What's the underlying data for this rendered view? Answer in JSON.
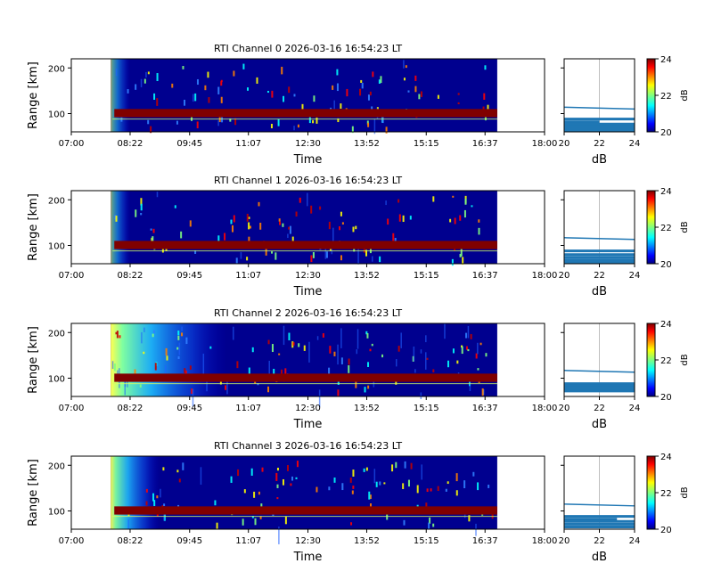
{
  "chart_data": [
    {
      "type": "heatmap",
      "title": "RTI Channel 0 2026-03-16 16:54:23 LT",
      "xlabel": "Time",
      "ylabel": "Range [km]",
      "x_ticks": [
        "07:00",
        "08:22",
        "09:45",
        "11:07",
        "12:30",
        "13:52",
        "15:15",
        "16:37",
        "18:00"
      ],
      "y_ticks": [
        100,
        200
      ],
      "xlim": [
        "07:00",
        "18:00"
      ],
      "ylim": [
        60,
        220
      ],
      "data_start": "07:55",
      "data_end": "16:54",
      "strong_echo_range_km": [
        92,
        110
      ],
      "low_range_noise": "low",
      "profile": {
        "xlabel": "dB",
        "xlim": [
          20,
          24
        ],
        "x_ticks": [
          20,
          22,
          24
        ],
        "lines": [
          {
            "range_km": 114,
            "db_start": 20,
            "db_end": 24
          },
          {
            "range_km": 88,
            "db_start": 20,
            "db_end": 24
          },
          {
            "range_km": 82,
            "db_start": 20,
            "db_end": 22
          },
          {
            "range_km": 77,
            "db_start": 20,
            "db_end": 24
          },
          {
            "range_km": 72,
            "db_start": 20,
            "db_end": 24
          },
          {
            "range_km": 68,
            "db_start": 20,
            "db_end": 24
          },
          {
            "range_km": 64,
            "db_start": 20,
            "db_end": 24
          }
        ]
      },
      "colorbar": {
        "label": "dB",
        "min": 20,
        "max": 24,
        "ticks": [
          20,
          22,
          24
        ]
      }
    },
    {
      "type": "heatmap",
      "title": "RTI Channel 1 2026-03-16 16:54:23 LT",
      "xlabel": "Time",
      "ylabel": "Range [km]",
      "x_ticks": [
        "07:00",
        "08:22",
        "09:45",
        "11:07",
        "12:30",
        "13:52",
        "15:15",
        "16:37",
        "18:00"
      ],
      "y_ticks": [
        100,
        200
      ],
      "xlim": [
        "07:00",
        "18:00"
      ],
      "ylim": [
        60,
        220
      ],
      "data_start": "07:55",
      "data_end": "16:54",
      "strong_echo_range_km": [
        92,
        110
      ],
      "low_range_noise": "low",
      "profile": {
        "xlabel": "dB",
        "xlim": [
          20,
          24
        ],
        "x_ticks": [
          20,
          22,
          24
        ],
        "lines": [
          {
            "range_km": 117,
            "db_start": 20,
            "db_end": 24
          },
          {
            "range_km": 88,
            "db_start": 20,
            "db_end": 24
          },
          {
            "range_km": 80,
            "db_start": 20,
            "db_end": 24
          },
          {
            "range_km": 74,
            "db_start": 20,
            "db_end": 24
          },
          {
            "range_km": 68,
            "db_start": 20,
            "db_end": 24
          },
          {
            "range_km": 63,
            "db_start": 20,
            "db_end": 24
          }
        ]
      },
      "colorbar": {
        "label": "dB",
        "min": 20,
        "max": 24,
        "ticks": [
          20,
          22,
          24
        ]
      }
    },
    {
      "type": "heatmap",
      "title": "RTI Channel 2 2026-03-16 16:54:23 LT",
      "xlabel": "Time",
      "ylabel": "Range [km]",
      "x_ticks": [
        "07:00",
        "08:22",
        "09:45",
        "11:07",
        "12:30",
        "13:52",
        "15:15",
        "16:37",
        "18:00"
      ],
      "y_ticks": [
        100,
        200
      ],
      "xlim": [
        "07:00",
        "18:00"
      ],
      "ylim": [
        60,
        220
      ],
      "data_start": "07:55",
      "data_end": "16:54",
      "strong_echo_range_km": [
        92,
        110
      ],
      "low_range_noise": "high",
      "profile": {
        "xlabel": "dB",
        "xlim": [
          20,
          24
        ],
        "x_ticks": [
          20,
          22,
          24
        ],
        "lines": [
          {
            "range_km": 117,
            "db_start": 20,
            "db_end": 24
          },
          {
            "range_km": 88,
            "db_start": 20,
            "db_end": 24
          },
          {
            "range_km": 84,
            "db_start": 20,
            "db_end": 24
          },
          {
            "range_km": 80,
            "db_start": 20,
            "db_end": 24
          },
          {
            "range_km": 76,
            "db_start": 20,
            "db_end": 24
          },
          {
            "range_km": 72,
            "db_start": 20,
            "db_end": 24
          }
        ]
      },
      "colorbar": {
        "label": "dB",
        "min": 20,
        "max": 24,
        "ticks": [
          20,
          22,
          24
        ]
      }
    },
    {
      "type": "heatmap",
      "title": "RTI Channel 3 2026-03-16 16:54:23 LT",
      "xlabel": "Time",
      "ylabel": "Range [km]",
      "x_ticks": [
        "07:00",
        "08:22",
        "09:45",
        "11:07",
        "12:30",
        "13:52",
        "15:15",
        "16:37",
        "18:00"
      ],
      "y_ticks": [
        100,
        200
      ],
      "xlim": [
        "07:00",
        "18:00"
      ],
      "ylim": [
        60,
        220
      ],
      "data_start": "07:55",
      "data_end": "16:54",
      "strong_echo_range_km": [
        92,
        110
      ],
      "low_range_noise": "medium",
      "profile": {
        "xlabel": "dB",
        "xlim": [
          20,
          24
        ],
        "x_ticks": [
          20,
          22,
          24
        ],
        "lines": [
          {
            "range_km": 115,
            "db_start": 20,
            "db_end": 24
          },
          {
            "range_km": 88,
            "db_start": 20,
            "db_end": 24
          },
          {
            "range_km": 82,
            "db_start": 20,
            "db_end": 23
          },
          {
            "range_km": 77,
            "db_start": 20,
            "db_end": 24
          },
          {
            "range_km": 71,
            "db_start": 20,
            "db_end": 24
          },
          {
            "range_km": 65,
            "db_start": 20,
            "db_end": 24
          }
        ]
      },
      "colorbar": {
        "label": "dB",
        "min": 20,
        "max": 24,
        "ticks": [
          20,
          22,
          24
        ]
      }
    }
  ]
}
